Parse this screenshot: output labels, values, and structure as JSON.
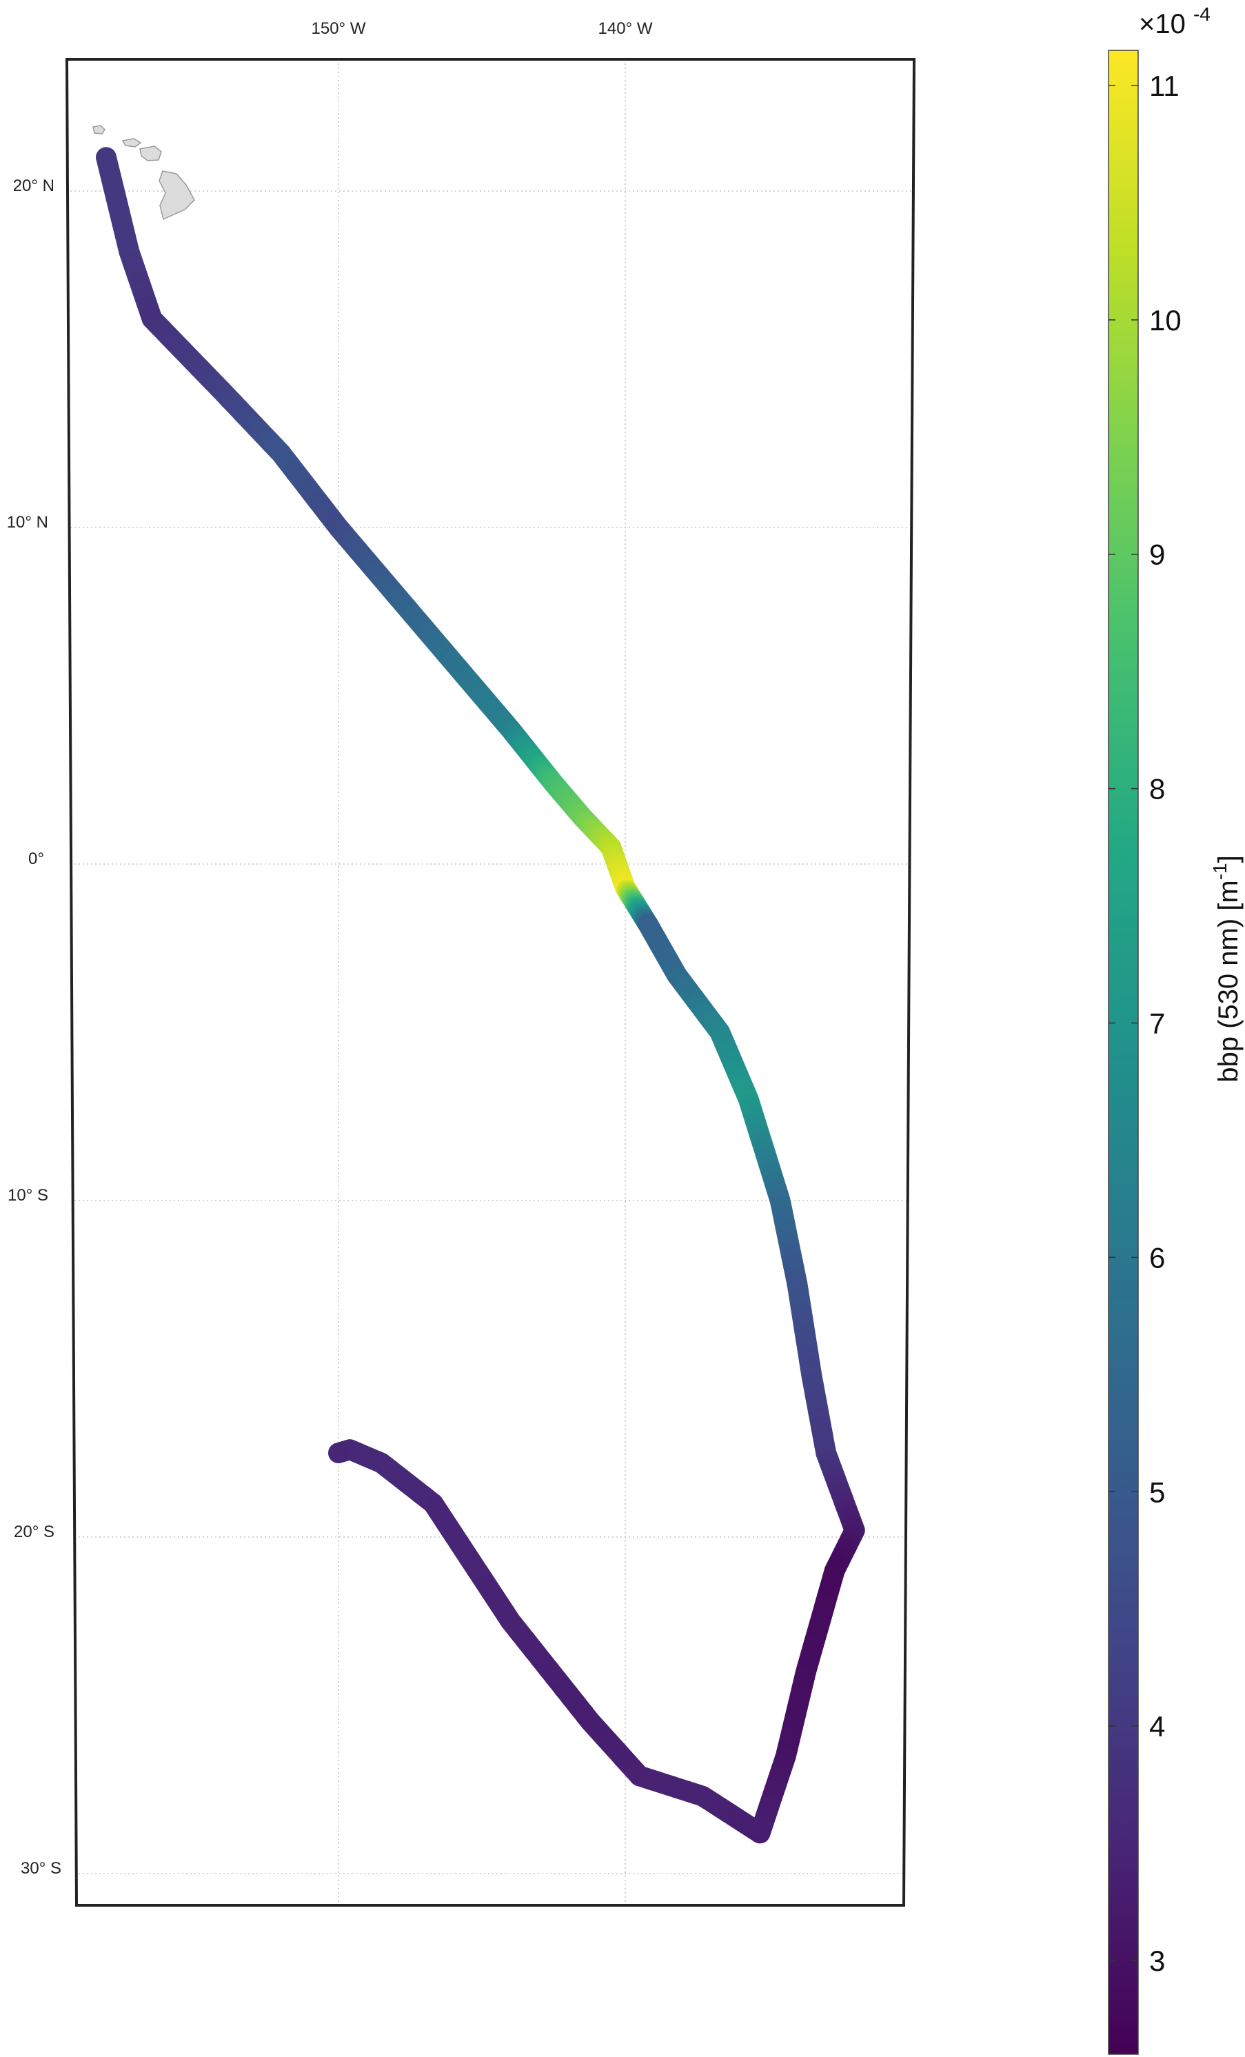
{
  "map": {
    "lon_labels": [
      {
        "lon": -150,
        "text": "150° W"
      },
      {
        "lon": -140,
        "text": "140° W"
      }
    ],
    "lat_labels": [
      {
        "lat": 20,
        "text": "20° N"
      },
      {
        "lat": 10,
        "text": "10° N"
      },
      {
        "lat": 0,
        "text": "0°"
      },
      {
        "lat": -10,
        "text": "10° S"
      },
      {
        "lat": -20,
        "text": "20° S"
      },
      {
        "lat": -30,
        "text": "30° S"
      }
    ],
    "grid": true,
    "land_color": "#dcdcdc",
    "land_label": "Hawaiian Islands"
  },
  "chart_data": {
    "type": "scatter",
    "title": "",
    "xlabel": "",
    "ylabel": "",
    "color_variable": "bbp (530 nm) [m-1]",
    "colorbar": {
      "label_main": "bbp (530 nm) [m",
      "label_exp": "-1",
      "label_close": "]",
      "multiplier": "×10",
      "multiplier_exp": "-4",
      "range": [
        2.6,
        11.15
      ],
      "ticks": [
        3,
        4,
        5,
        6,
        7,
        8,
        9,
        10,
        11
      ],
      "colormap": "viridis"
    },
    "lon_range": [
      -159.5,
      -130.5
    ],
    "lat_range": [
      -31,
      23.5
    ],
    "track": [
      {
        "lon": -158.1,
        "lat": 21.0,
        "value": 4.0
      },
      {
        "lon": -157.3,
        "lat": 18.2,
        "value": 4.0
      },
      {
        "lon": -156.5,
        "lat": 16.2,
        "value": 3.8
      },
      {
        "lon": -154.0,
        "lat": 14.0,
        "value": 4.2
      },
      {
        "lon": -152.0,
        "lat": 12.2,
        "value": 4.8
      },
      {
        "lon": -150.0,
        "lat": 10.0,
        "value": 4.5
      },
      {
        "lon": -148.0,
        "lat": 8.0,
        "value": 5.2
      },
      {
        "lon": -146.0,
        "lat": 6.0,
        "value": 5.8
      },
      {
        "lon": -144.0,
        "lat": 4.0,
        "value": 6.3
      },
      {
        "lon": -142.5,
        "lat": 2.4,
        "value": 8.5
      },
      {
        "lon": -141.5,
        "lat": 1.4,
        "value": 9.2
      },
      {
        "lon": -140.5,
        "lat": 0.5,
        "value": 10.2
      },
      {
        "lon": -140.0,
        "lat": -0.7,
        "value": 11.0
      },
      {
        "lon": -139.2,
        "lat": -1.8,
        "value": 5.2
      },
      {
        "lon": -138.2,
        "lat": -3.3,
        "value": 5.5
      },
      {
        "lon": -136.7,
        "lat": -5.0,
        "value": 6.5
      },
      {
        "lon": -135.7,
        "lat": -7.0,
        "value": 7.2
      },
      {
        "lon": -134.6,
        "lat": -10.0,
        "value": 5.6
      },
      {
        "lon": -134.0,
        "lat": -12.5,
        "value": 4.8
      },
      {
        "lon": -133.5,
        "lat": -15.2,
        "value": 4.3
      },
      {
        "lon": -133.0,
        "lat": -17.5,
        "value": 4.0
      },
      {
        "lon": -132.0,
        "lat": -19.8,
        "value": 3.2
      },
      {
        "lon": -132.7,
        "lat": -21.0,
        "value": 2.8
      },
      {
        "lon": -133.7,
        "lat": -24.0,
        "value": 2.9
      },
      {
        "lon": -134.4,
        "lat": -26.5,
        "value": 3.0
      },
      {
        "lon": -135.3,
        "lat": -28.8,
        "value": 3.3
      },
      {
        "lon": -137.3,
        "lat": -27.7,
        "value": 3.4
      },
      {
        "lon": -139.5,
        "lat": -27.1,
        "value": 3.4
      },
      {
        "lon": -141.2,
        "lat": -25.5,
        "value": 3.3
      },
      {
        "lon": -144.0,
        "lat": -22.5,
        "value": 3.4
      },
      {
        "lon": -146.7,
        "lat": -19.0,
        "value": 3.5
      },
      {
        "lon": -148.5,
        "lat": -17.8,
        "value": 3.6
      },
      {
        "lon": -149.6,
        "lat": -17.4,
        "value": 3.6
      },
      {
        "lon": -150.0,
        "lat": -17.5,
        "value": 3.5
      }
    ]
  }
}
